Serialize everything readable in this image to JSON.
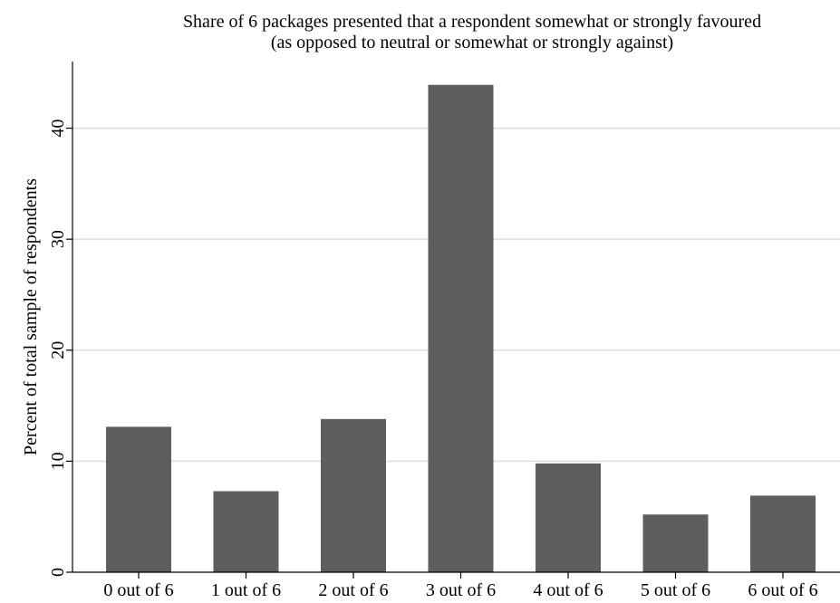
{
  "chart_data": {
    "type": "bar",
    "title": "Share of 6 packages presented that a respondent somewhat or strongly favoured",
    "subtitle": "(as opposed to neutral or somewhat or strongly against)",
    "xlabel": "",
    "ylabel": "Percent of total sample of respondents",
    "categories": [
      "0 out of 6",
      "1 out of 6",
      "2 out of 6",
      "3 out of 6",
      "4 out of 6",
      "5 out of 6",
      "6 out of 6"
    ],
    "values": [
      13.1,
      7.3,
      13.8,
      43.9,
      9.8,
      5.2,
      6.9
    ],
    "ylim": [
      0,
      46
    ],
    "yticks": [
      0,
      10,
      20,
      30,
      40
    ],
    "ytick_labels": [
      "0",
      "10",
      "20",
      "30",
      "40"
    ],
    "grid": true,
    "legend": "none",
    "colors": {
      "bar": "#5e5e5e",
      "grid": "#dcdcdc",
      "axis": "#000000"
    }
  }
}
